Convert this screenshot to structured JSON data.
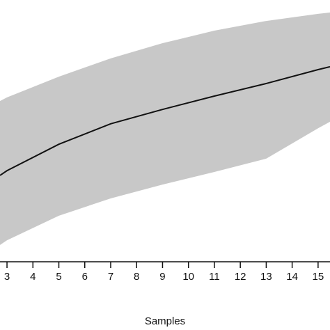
{
  "chart_data": {
    "type": "line",
    "x_label": "Samples",
    "x": [
      2.73,
      3,
      5,
      7,
      9,
      11,
      13,
      15,
      15.46
    ],
    "values": [
      33.0,
      34.8,
      44.9,
      52.7,
      58.2,
      63.3,
      68.1,
      73.4,
      74.5
    ],
    "color": "#111111",
    "band": {
      "upper": [
        61.4,
        62.8,
        70.7,
        77.7,
        83.5,
        88.3,
        92.0,
        94.7,
        95.2
      ],
      "lower": [
        6.4,
        8.2,
        17.6,
        24.2,
        29.5,
        34.3,
        39.4,
        51.0,
        53.5
      ],
      "color": "#c8c8c8"
    },
    "xlim": [
      2.73,
      15.46
    ],
    "xticks": [
      3,
      4,
      5,
      6,
      7,
      8,
      9,
      10,
      11,
      12,
      13,
      14,
      15
    ],
    "ylim": [
      0,
      100
    ]
  }
}
